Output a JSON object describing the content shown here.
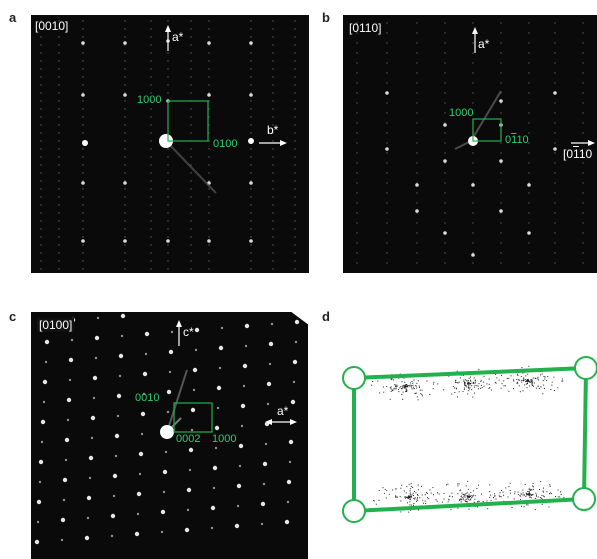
{
  "panels": {
    "a": {
      "label": "a",
      "zone_axis": "[0010]",
      "spot1": "1000",
      "spot2": "0100",
      "axis1": "a*",
      "axis2": "b*"
    },
    "b": {
      "label": "b",
      "zone_axis": "[0110]",
      "spot1": "1000",
      "spot2_prefix": "0",
      "spot2_bar": "1",
      "spot2_suffix": "10",
      "axis1": "a*",
      "axis2_prefix": "[0",
      "axis2_bar": "1",
      "axis2_suffix": "10"
    },
    "c": {
      "label": "c",
      "zone_axis": "[0100]",
      "spot1": "0010",
      "spot2": "0002",
      "spot3": "1000",
      "axis1": "c*",
      "axis2": "a*"
    },
    "d": {
      "label": "d"
    }
  },
  "colors": {
    "index_green": "#2ecc71",
    "box_green": "#22b14c",
    "background": "#0a0a0a"
  }
}
